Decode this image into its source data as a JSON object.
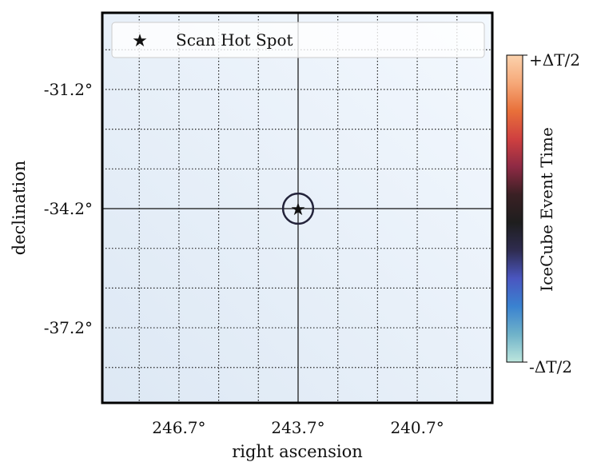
{
  "chart_data": {
    "type": "scatter",
    "xlabel": "right ascension",
    "ylabel": "declination",
    "xlim": [
      248.63,
      238.81
    ],
    "ylim": [
      -39.09,
      -29.27
    ],
    "x_inverted": true,
    "grid": true,
    "grid_style": "dotted",
    "x_ticks": [
      {
        "value": 246.7,
        "label": "246.7°"
      },
      {
        "value": 243.7,
        "label": "243.7°"
      },
      {
        "value": 240.7,
        "label": "240.7°"
      }
    ],
    "y_ticks": [
      {
        "value": -31.2,
        "label": "-31.2°"
      },
      {
        "value": -34.2,
        "label": "-34.2°"
      },
      {
        "value": -37.2,
        "label": "-37.2°"
      }
    ],
    "series": [
      {
        "name": "Scan Hot Spot",
        "marker": "star",
        "color": "#000000",
        "points": [
          {
            "x": 243.7,
            "y": -34.2
          }
        ]
      }
    ],
    "error_circle": {
      "ra": 243.7,
      "dec": -34.2,
      "radius_deg": 0.38,
      "color": "#23233a"
    },
    "crosshair": {
      "ra": 243.7,
      "dec": -34.2
    },
    "legend": {
      "position": "top-left",
      "entries": [
        "Scan Hot Spot"
      ]
    },
    "colorbar": {
      "label": "IceCube Event Time",
      "tick_top": "+ΔT/2",
      "tick_bottom": "-ΔT/2",
      "colors": [
        "#bde6dd",
        "#6fb2c9",
        "#3a82d0",
        "#4a56c0",
        "#2f2c50",
        "#1e1e1e",
        "#3a2024",
        "#8e2a44",
        "#cf4040",
        "#e8703a",
        "#f6a878",
        "#fbd2ad"
      ]
    },
    "background_colors": [
      "#f3f8fe",
      "#dde8f4"
    ]
  }
}
